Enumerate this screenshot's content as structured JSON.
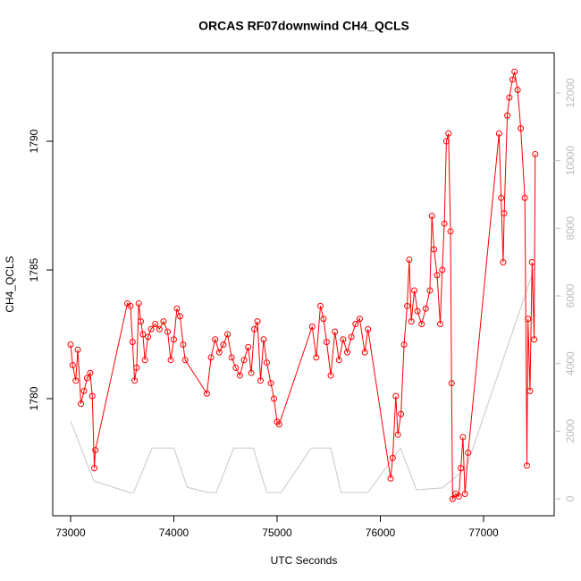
{
  "chart_data": {
    "type": "line",
    "title": "ORCAS RF07downwind CH4_QCLS",
    "x_label": "UTC Seconds",
    "y_label": "CH4_QCLS",
    "xlim": [
      72827,
      77684
    ],
    "xticks": [
      73000,
      74000,
      75000,
      76000,
      77000
    ],
    "ylim": [
      1775.45,
      1793.44
    ],
    "yticks": [
      1780,
      1785,
      1790
    ],
    "y2lim": [
      -502,
      13190
    ],
    "y2ticks": [
      0,
      2000,
      4000,
      6000,
      8000,
      10000,
      12000
    ],
    "series": [
      {
        "color": "#ff0000",
        "axis": "y",
        "markers": true,
        "x": [
          73000,
          73020,
          73050,
          73070,
          73100,
          73130,
          73160,
          73190,
          73210,
          73230,
          73240,
          73550,
          73580,
          73600,
          73620,
          73640,
          73660,
          73680,
          73700,
          73720,
          73750,
          73780,
          73820,
          73860,
          73900,
          73940,
          73970,
          74000,
          74030,
          74060,
          74090,
          74110,
          74320,
          74360,
          74400,
          74440,
          74480,
          74520,
          74560,
          74600,
          74640,
          74680,
          74720,
          74750,
          74780,
          74810,
          74840,
          74870,
          74900,
          74940,
          74970,
          75000,
          75020,
          75340,
          75380,
          75420,
          75450,
          75480,
          75520,
          75560,
          75600,
          75640,
          75680,
          75720,
          75760,
          75800,
          75850,
          75880,
          76100,
          76120,
          76150,
          76170,
          76200,
          76230,
          76260,
          76280,
          76300,
          76330,
          76360,
          76400,
          76440,
          76480,
          76500,
          76520,
          76550,
          76580,
          76600,
          76620,
          76640,
          76660,
          76680,
          76690,
          76700,
          76730,
          76760,
          76780,
          76800,
          76820,
          76850,
          77150,
          77170,
          77190,
          77200,
          77230,
          77250,
          77280,
          77300,
          77330,
          77360,
          77400,
          77420,
          77430,
          77450,
          77470,
          77490,
          77500
        ],
        "values": [
          1782.1,
          1781.3,
          1780.7,
          1781.9,
          1779.8,
          1780.3,
          1780.8,
          1781.0,
          1780.1,
          1777.3,
          1778.0,
          1783.7,
          1783.6,
          1782.2,
          1780.7,
          1781.2,
          1783.7,
          1783.0,
          1782.5,
          1781.5,
          1782.4,
          1782.7,
          1782.9,
          1782.7,
          1783.0,
          1782.6,
          1781.5,
          1782.3,
          1783.5,
          1783.2,
          1782.1,
          1781.5,
          1780.2,
          1781.6,
          1782.3,
          1781.8,
          1782.1,
          1782.5,
          1781.6,
          1781.2,
          1780.9,
          1781.5,
          1782.0,
          1781.0,
          1782.7,
          1783.0,
          1780.7,
          1782.3,
          1781.4,
          1780.6,
          1780.0,
          1779.1,
          1779.0,
          1782.8,
          1781.6,
          1783.6,
          1783.1,
          1782.2,
          1780.9,
          1782.6,
          1781.5,
          1782.3,
          1781.8,
          1782.4,
          1782.9,
          1783.1,
          1781.8,
          1782.7,
          1776.9,
          1777.7,
          1780.1,
          1778.6,
          1779.4,
          1782.1,
          1783.6,
          1785.4,
          1783.0,
          1784.2,
          1783.4,
          1782.9,
          1783.5,
          1784.2,
          1787.1,
          1785.8,
          1784.8,
          1782.9,
          1785.0,
          1786.8,
          1790.0,
          1790.3,
          1786.5,
          1780.6,
          1776.1,
          1776.3,
          1776.2,
          1777.3,
          1778.5,
          1776.3,
          1777.9,
          1790.3,
          1787.8,
          1785.3,
          1787.2,
          1791.0,
          1791.7,
          1792.4,
          1792.7,
          1792.0,
          1790.5,
          1787.8,
          1777.4,
          1783.1,
          1780.3,
          1785.3,
          1782.3,
          1789.5
        ]
      },
      {
        "color": "#c8c8c8",
        "axis": "y2",
        "markers": false,
        "x": [
          73000,
          73225,
          73570,
          73610,
          73790,
          74000,
          74130,
          74330,
          74410,
          74580,
          74770,
          74900,
          75040,
          75330,
          75520,
          75620,
          75880,
          76195,
          76350,
          76600,
          76830,
          77500
        ],
        "values": [
          2300,
          530,
          185,
          185,
          1500,
          1500,
          340,
          185,
          185,
          1500,
          1500,
          185,
          185,
          1500,
          1500,
          185,
          185,
          1500,
          265,
          320,
          900,
          6900
        ]
      }
    ]
  }
}
